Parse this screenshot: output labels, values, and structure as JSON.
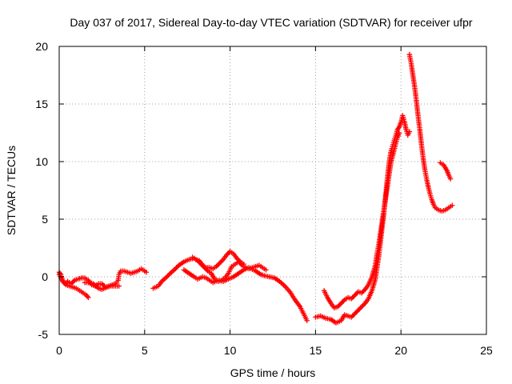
{
  "chart_data": {
    "type": "scatter",
    "title": "Day 037 of 2017, Sidereal Day-to-day VTEC variation (SDTVAR) for receiver ufpr",
    "xlabel": "GPS time / hours",
    "ylabel": "SDTVAR / TECUs",
    "xlim": [
      0,
      25
    ],
    "ylim": [
      -5,
      20
    ],
    "xticks": [
      0,
      5,
      10,
      15,
      20,
      25
    ],
    "yticks": [
      -5,
      0,
      5,
      10,
      15,
      20
    ],
    "grid": true,
    "marker": "plus",
    "color": "#ff0000",
    "series": [
      {
        "name": "SDTVAR",
        "segments": [
          [
            [
              0.0,
              0.4
            ],
            [
              0.1,
              0.2
            ],
            [
              0.2,
              -0.3
            ],
            [
              0.35,
              -0.6
            ],
            [
              0.5,
              -0.4
            ],
            [
              0.7,
              -0.6
            ],
            [
              0.9,
              -0.3
            ],
            [
              1.1,
              -0.2
            ],
            [
              1.3,
              -0.1
            ],
            [
              1.5,
              -0.1
            ],
            [
              1.7,
              -0.3
            ],
            [
              1.9,
              -0.7
            ],
            [
              2.1,
              -0.8
            ],
            [
              2.3,
              -0.6
            ],
            [
              2.5,
              -0.6
            ],
            [
              2.7,
              -0.9
            ],
            [
              2.9,
              -0.8
            ],
            [
              3.1,
              -0.7
            ],
            [
              3.3,
              -0.6
            ],
            [
              3.45,
              -0.3
            ],
            [
              3.5,
              0.2
            ],
            [
              3.6,
              0.5
            ],
            [
              3.8,
              0.5
            ],
            [
              4.0,
              0.4
            ],
            [
              4.2,
              0.3
            ],
            [
              4.4,
              0.4
            ],
            [
              4.6,
              0.5
            ],
            [
              4.8,
              0.7
            ],
            [
              5.0,
              0.5
            ],
            [
              5.1,
              0.4
            ]
          ],
          [
            [
              0.0,
              0.2
            ],
            [
              0.2,
              -0.4
            ],
            [
              0.4,
              -0.7
            ],
            [
              0.6,
              -0.8
            ],
            [
              0.8,
              -0.9
            ],
            [
              1.0,
              -1.0
            ],
            [
              1.2,
              -1.2
            ],
            [
              1.4,
              -1.4
            ],
            [
              1.6,
              -1.6
            ],
            [
              1.7,
              -1.8
            ]
          ],
          [
            [
              1.5,
              -0.5
            ],
            [
              1.8,
              -0.5
            ],
            [
              2.0,
              -0.6
            ],
            [
              2.3,
              -1.0
            ],
            [
              2.5,
              -1.1
            ],
            [
              2.8,
              -0.9
            ],
            [
              3.0,
              -0.8
            ],
            [
              3.2,
              -0.8
            ],
            [
              3.5,
              -0.8
            ]
          ],
          [
            [
              5.5,
              -1.0
            ],
            [
              5.8,
              -0.8
            ],
            [
              6.0,
              -0.4
            ],
            [
              6.3,
              0.0
            ],
            [
              6.5,
              0.3
            ],
            [
              6.8,
              0.7
            ],
            [
              7.0,
              1.0
            ],
            [
              7.3,
              1.3
            ],
            [
              7.6,
              1.5
            ],
            [
              7.9,
              1.6
            ],
            [
              8.1,
              1.4
            ],
            [
              8.3,
              1.1
            ],
            [
              8.5,
              0.8
            ],
            [
              8.7,
              0.5
            ],
            [
              8.9,
              0.3
            ],
            [
              9.1,
              -0.2
            ],
            [
              9.3,
              -0.4
            ],
            [
              9.5,
              -0.3
            ],
            [
              9.7,
              -0.1
            ],
            [
              9.9,
              0.3
            ],
            [
              10.1,
              0.9
            ],
            [
              10.3,
              1.1
            ],
            [
              10.5,
              1.3
            ],
            [
              10.7,
              1.0
            ],
            [
              10.9,
              0.8
            ],
            [
              11.1,
              0.7
            ],
            [
              11.3,
              0.8
            ],
            [
              11.5,
              0.9
            ],
            [
              11.7,
              1.0
            ],
            [
              11.9,
              0.8
            ],
            [
              12.1,
              0.6
            ]
          ],
          [
            [
              7.8,
              1.7
            ],
            [
              8.0,
              1.5
            ],
            [
              8.2,
              1.4
            ],
            [
              8.4,
              1.0
            ],
            [
              8.6,
              0.8
            ],
            [
              8.8,
              0.8
            ],
            [
              9.0,
              0.7
            ],
            [
              9.2,
              0.9
            ],
            [
              9.4,
              1.2
            ],
            [
              9.6,
              1.5
            ],
            [
              9.8,
              1.9
            ],
            [
              10.0,
              2.2
            ],
            [
              10.2,
              2.0
            ],
            [
              10.4,
              1.6
            ],
            [
              10.6,
              1.3
            ],
            [
              10.8,
              1.1
            ]
          ],
          [
            [
              7.3,
              0.6
            ],
            [
              7.6,
              0.3
            ],
            [
              7.9,
              0.0
            ],
            [
              8.1,
              -0.2
            ],
            [
              8.4,
              0.0
            ],
            [
              8.6,
              -0.1
            ],
            [
              8.8,
              -0.3
            ],
            [
              9.0,
              -0.5
            ],
            [
              9.3,
              -0.3
            ],
            [
              9.6,
              -0.4
            ],
            [
              9.9,
              -0.2
            ],
            [
              10.2,
              0.0
            ],
            [
              10.5,
              0.3
            ],
            [
              10.8,
              0.6
            ],
            [
              11.1,
              0.8
            ],
            [
              11.5,
              0.5
            ],
            [
              11.8,
              0.2
            ],
            [
              12.0,
              0.1
            ],
            [
              12.3,
              0.0
            ],
            [
              12.6,
              -0.1
            ],
            [
              12.9,
              -0.4
            ],
            [
              13.2,
              -0.8
            ],
            [
              13.5,
              -1.3
            ],
            [
              13.8,
              -2.0
            ],
            [
              14.1,
              -2.6
            ],
            [
              14.3,
              -3.2
            ],
            [
              14.5,
              -3.8
            ]
          ],
          [
            [
              15.0,
              -3.5
            ],
            [
              15.3,
              -3.4
            ],
            [
              15.6,
              -3.6
            ],
            [
              15.9,
              -3.7
            ],
            [
              16.2,
              -4.0
            ],
            [
              16.5,
              -3.8
            ],
            [
              16.7,
              -3.3
            ],
            [
              16.9,
              -3.4
            ],
            [
              17.1,
              -3.5
            ],
            [
              17.3,
              -3.2
            ],
            [
              17.5,
              -2.9
            ],
            [
              17.7,
              -2.6
            ],
            [
              17.9,
              -2.3
            ],
            [
              18.1,
              -1.9
            ],
            [
              18.3,
              -1.2
            ],
            [
              18.5,
              -0.2
            ],
            [
              18.6,
              0.8
            ],
            [
              18.7,
              1.8
            ],
            [
              18.8,
              3.0
            ],
            [
              18.9,
              4.3
            ],
            [
              19.0,
              5.5
            ],
            [
              19.1,
              7.0
            ],
            [
              19.2,
              8.5
            ],
            [
              19.3,
              9.8
            ],
            [
              19.4,
              10.8
            ],
            [
              19.5,
              11.3
            ],
            [
              19.6,
              11.8
            ],
            [
              19.7,
              12.3
            ],
            [
              19.8,
              12.8
            ],
            [
              19.9,
              13.0
            ],
            [
              20.0,
              13.4
            ],
            [
              20.1,
              14.0
            ],
            [
              20.2,
              13.5
            ],
            [
              20.3,
              12.8
            ],
            [
              20.4,
              12.3
            ],
            [
              20.5,
              12.6
            ]
          ],
          [
            [
              15.5,
              -1.2
            ],
            [
              15.7,
              -1.8
            ],
            [
              15.9,
              -2.3
            ],
            [
              16.1,
              -2.7
            ],
            [
              16.3,
              -2.6
            ],
            [
              16.5,
              -2.3
            ],
            [
              16.7,
              -2.0
            ],
            [
              16.9,
              -1.8
            ],
            [
              17.1,
              -1.9
            ],
            [
              17.3,
              -1.6
            ],
            [
              17.5,
              -1.3
            ],
            [
              17.7,
              -1.4
            ],
            [
              17.9,
              -1.1
            ],
            [
              18.1,
              -0.7
            ],
            [
              18.3,
              0.0
            ],
            [
              18.5,
              1.0
            ],
            [
              18.6,
              2.0
            ],
            [
              18.7,
              2.8
            ],
            [
              18.8,
              3.8
            ],
            [
              18.9,
              4.8
            ],
            [
              19.0,
              5.8
            ],
            [
              19.1,
              6.8
            ],
            [
              19.2,
              7.8
            ],
            [
              19.3,
              8.8
            ],
            [
              19.4,
              9.8
            ],
            [
              19.5,
              10.4
            ],
            [
              19.6,
              11.0
            ],
            [
              19.7,
              11.6
            ],
            [
              19.8,
              12.1
            ],
            [
              19.9,
              12.5
            ]
          ],
          [
            [
              20.5,
              19.3
            ],
            [
              20.6,
              18.5
            ],
            [
              20.7,
              17.5
            ],
            [
              20.8,
              16.5
            ],
            [
              20.9,
              15.3
            ],
            [
              21.0,
              14.0
            ],
            [
              21.1,
              12.8
            ],
            [
              21.2,
              11.5
            ],
            [
              21.3,
              10.3
            ],
            [
              21.4,
              9.3
            ],
            [
              21.5,
              8.5
            ],
            [
              21.6,
              7.8
            ],
            [
              21.7,
              7.2
            ],
            [
              21.8,
              6.7
            ],
            [
              21.9,
              6.3
            ],
            [
              22.0,
              6.0
            ],
            [
              22.2,
              5.8
            ],
            [
              22.4,
              5.7
            ],
            [
              22.6,
              5.8
            ],
            [
              22.8,
              6.0
            ],
            [
              23.0,
              6.2
            ]
          ],
          [
            [
              22.3,
              9.9
            ],
            [
              22.5,
              9.7
            ],
            [
              22.7,
              9.2
            ],
            [
              22.8,
              8.8
            ],
            [
              22.9,
              8.5
            ]
          ]
        ]
      }
    ]
  }
}
